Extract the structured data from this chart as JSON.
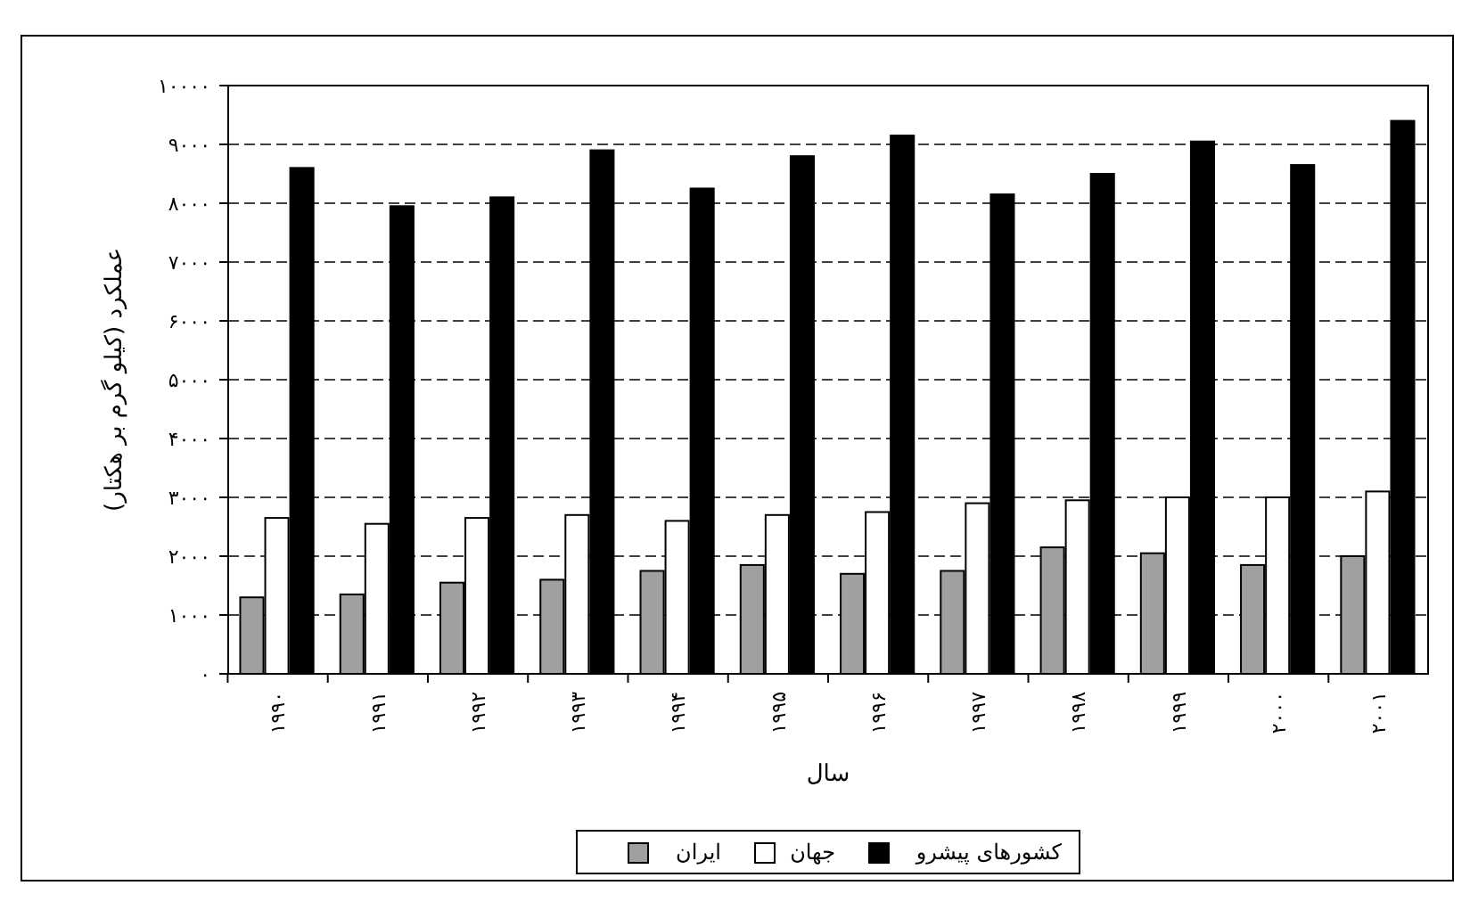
{
  "chart_data": {
    "type": "bar",
    "xlabel": "سال",
    "ylabel": "عملکرد (کیلو گرم بر هکتار)",
    "categories": [
      "۱۹۹۰",
      "۱۹۹۱",
      "۱۹۹۲",
      "۱۹۹۳",
      "۱۹۹۴",
      "۱۹۹۵",
      "۱۹۹۶",
      "۱۹۹۷",
      "۱۹۹۸",
      "۱۹۹۹",
      "۲۰۰۰",
      "۲۰۰۱"
    ],
    "series": [
      {
        "name": "ایران",
        "color": "#a0a0a0",
        "values": [
          1300,
          1350,
          1550,
          1600,
          1750,
          1850,
          1700,
          1750,
          2150,
          2050,
          1850,
          2000
        ]
      },
      {
        "name": "جهان",
        "color": "#ffffff",
        "values": [
          2650,
          2550,
          2650,
          2700,
          2600,
          2700,
          2750,
          2900,
          2950,
          3000,
          3000,
          3100
        ]
      },
      {
        "name": "کشورهای پیشرو",
        "color": "#000000",
        "values": [
          8600,
          7950,
          8100,
          8900,
          8250,
          8800,
          9150,
          8150,
          8500,
          9050,
          8650,
          9400
        ]
      }
    ],
    "ylim": [
      0,
      10000
    ],
    "yticks": [
      {
        "value": 0,
        "label": "۰"
      },
      {
        "value": 1000,
        "label": "۱۰۰۰"
      },
      {
        "value": 2000,
        "label": "۲۰۰۰"
      },
      {
        "value": 3000,
        "label": "۳۰۰۰"
      },
      {
        "value": 4000,
        "label": "۴۰۰۰"
      },
      {
        "value": 5000,
        "label": "۵۰۰۰"
      },
      {
        "value": 6000,
        "label": "۶۰۰۰"
      },
      {
        "value": 7000,
        "label": "۷۰۰۰"
      },
      {
        "value": 8000,
        "label": "۸۰۰۰"
      },
      {
        "value": 9000,
        "label": "۹۰۰۰"
      },
      {
        "value": 10000,
        "label": "۱۰۰۰۰"
      }
    ],
    "grid": "y",
    "legend": "bottom"
  }
}
